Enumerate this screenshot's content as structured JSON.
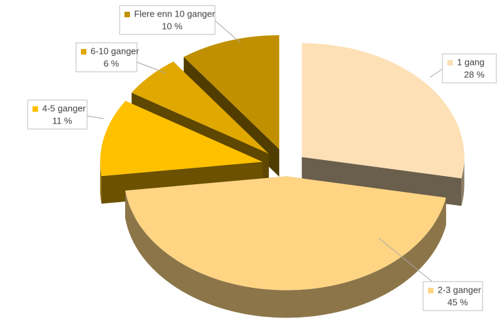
{
  "chart_data": {
    "type": "pie",
    "categories": [
      "1 gang",
      "2-3 ganger",
      "4-5 ganger",
      "6-10 ganger",
      "Flere enn 10 ganger"
    ],
    "values": [
      28,
      45,
      11,
      6,
      10
    ],
    "value_labels": [
      "28 %",
      "45 %",
      "11 %",
      "6 %",
      "10 %"
    ],
    "colors": [
      "#fde0b6",
      "#ffd584",
      "#ffc000",
      "#e0a800",
      "#c09000"
    ]
  }
}
